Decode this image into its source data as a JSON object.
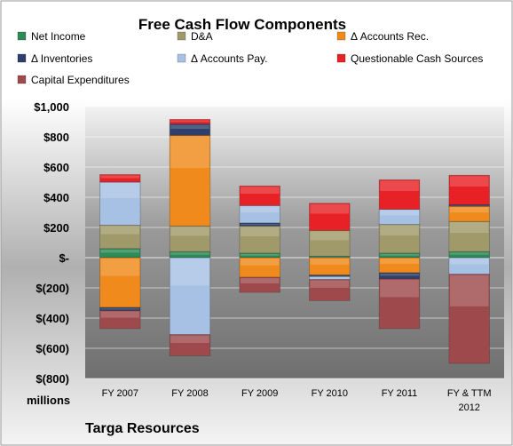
{
  "chart_data": {
    "type": "bar",
    "stacked": true,
    "title": "Free Cash Flow Components",
    "company": "Targa Resources",
    "units_label": "millions",
    "ylim": [
      -800,
      1000
    ],
    "yticks": [
      1000,
      800,
      600,
      400,
      200,
      0,
      -200,
      -400,
      -600,
      -800
    ],
    "ytick_labels": [
      "$1,000",
      "$800",
      "$600",
      "$400",
      "$200",
      "$-",
      "$(200)",
      "$(400)",
      "$(600)",
      "$(800)"
    ],
    "grid": true,
    "legend_position": "top",
    "categories": [
      {
        "line1": "FY 2007",
        "line2": ""
      },
      {
        "line1": "FY 2008",
        "line2": ""
      },
      {
        "line1": "FY 2009",
        "line2": ""
      },
      {
        "line1": "FY 2010",
        "line2": ""
      },
      {
        "line1": "FY 2011",
        "line2": ""
      },
      {
        "line1": "FY & TTM",
        "line2": "2012"
      }
    ],
    "series": [
      {
        "name": "Net Income",
        "color": "#2e8b57",
        "values": [
          60,
          40,
          30,
          10,
          30,
          40
        ]
      },
      {
        "name": "D&A",
        "color": "#a09a6a",
        "values": [
          155,
          170,
          180,
          170,
          190,
          200
        ]
      },
      {
        "name": "Δ Accounts Rec.",
        "color": "#f08a1c",
        "values": [
          -330,
          600,
          -130,
          -115,
          -100,
          100
        ]
      },
      {
        "name": "Δ Inventories",
        "color": "#2d3f6a",
        "values": [
          -20,
          75,
          20,
          -10,
          -40,
          10
        ]
      },
      {
        "name": "Δ Accounts Pay.",
        "color": "#a7c1e4",
        "values": [
          285,
          -510,
          115,
          -20,
          100,
          -110
        ]
      },
      {
        "name": "Questionable Cash Sources",
        "color": "#e82127",
        "values": [
          50,
          30,
          130,
          180,
          195,
          195
        ]
      },
      {
        "name": "Capital Expenditures",
        "color": "#9e4a4c",
        "values": [
          -120,
          -140,
          -100,
          -140,
          -330,
          -590
        ]
      }
    ]
  }
}
